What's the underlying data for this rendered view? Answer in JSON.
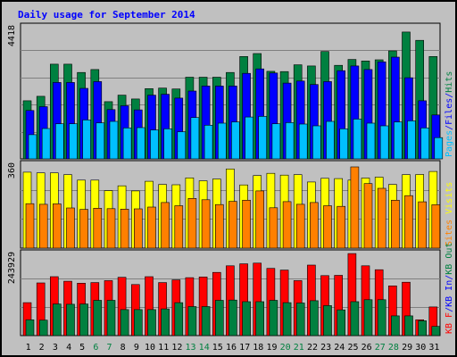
{
  "chart_data": {
    "title": "Daily usage for September 2014",
    "days": [
      "1",
      "2",
      "3",
      "4",
      "5",
      "6",
      "7",
      "8",
      "9",
      "10",
      "11",
      "12",
      "13",
      "14",
      "15",
      "16",
      "17",
      "18",
      "19",
      "20",
      "21",
      "22",
      "23",
      "24",
      "25",
      "26",
      "27",
      "28",
      "29",
      "30",
      "31"
    ],
    "weekend_days": [
      "6",
      "7",
      "13",
      "14",
      "20",
      "21",
      "27",
      "28"
    ],
    "panels": [
      {
        "id": "hits-files-pages",
        "type": "bar",
        "max_label": "4418",
        "max_value": 4418,
        "legend": [
          {
            "text": "Pages",
            "color": "#00c0ff"
          },
          {
            "text": "/",
            "color": "#0000ff"
          },
          {
            "text": "Files",
            "color": "#0000ff"
          },
          {
            "text": "/",
            "color": "#0000ff"
          },
          {
            "text": "Hits",
            "color": "#008040"
          }
        ],
        "series": [
          {
            "name": "Hits",
            "color": "#008040",
            "values": [
              1970,
              2120,
              3210,
              3210,
              2930,
              3030,
              1940,
              2160,
              2030,
              2380,
              2400,
              2370,
              2770,
              2770,
              2770,
              2930,
              3470,
              3570,
              2970,
              2960,
              3190,
              3150,
              3640,
              3170,
              3370,
              3320,
              3360,
              3660,
              4300,
              4020,
              3470
            ]
          },
          {
            "name": "Files",
            "color": "#0000ff",
            "values": [
              1640,
              1770,
              2590,
              2590,
              2390,
              2620,
              1670,
              1800,
              1660,
              2160,
              2190,
              2060,
              2300,
              2470,
              2470,
              2470,
              2900,
              3050,
              2910,
              2570,
              2640,
              2520,
              2620,
              2990,
              3150,
              3030,
              3290,
              3450,
              2750,
              1970,
              1490
            ]
          },
          {
            "name": "Pages",
            "color": "#00c0ff",
            "values": [
              820,
              1030,
              1190,
              1190,
              1320,
              1220,
              1270,
              1050,
              1060,
              980,
              1020,
              920,
              1400,
              1140,
              1210,
              1250,
              1420,
              1440,
              1190,
              1230,
              1180,
              1120,
              1270,
              1020,
              1350,
              1210,
              1120,
              1250,
              1290,
              1050,
              720
            ]
          }
        ]
      },
      {
        "id": "visits-sites",
        "type": "bar",
        "max_label": "360",
        "max_value": 360,
        "legend": [
          {
            "text": "Sites",
            "color": "#ff8000"
          },
          {
            "text": "/",
            "color": "#c0c0c0"
          },
          {
            "text": "Visits",
            "color": "#ffff00"
          }
        ],
        "series": [
          {
            "name": "Visits",
            "color": "#ffff00",
            "values": [
              333,
              330,
              330,
              322,
              298,
              298,
              252,
              273,
              251,
              293,
              279,
              278,
              308,
              295,
              303,
              347,
              277,
              318,
              328,
              320,
              322,
              290,
              306,
              305,
              298,
              307,
              311,
              279,
              322,
              323,
              336
            ]
          },
          {
            "name": "Sites",
            "color": "#ff8000",
            "values": [
              195,
              192,
              194,
              176,
              170,
              175,
              173,
              171,
              172,
              180,
              200,
              186,
              218,
              212,
              191,
              205,
              210,
              251,
              177,
              204,
              192,
              200,
              186,
              183,
              356,
              283,
              262,
              210,
              230,
              203,
              190
            ]
          }
        ]
      },
      {
        "id": "kb-in-out",
        "type": "bar",
        "max_label": "243929",
        "max_value": 243929,
        "legend": [
          {
            "text": "KB F",
            "color": "#ff0000"
          },
          {
            "text": "/",
            "color": "#0000ff"
          },
          {
            "text": "KB In",
            "color": "#0000ff"
          },
          {
            "text": "/",
            "color": "#0000ff"
          },
          {
            "text": "KB Out",
            "color": "#008040"
          }
        ],
        "series": [
          {
            "name": "KB F",
            "color": "#ff0000",
            "values": [
              100000,
              160000,
              179000,
              165000,
              159000,
              161000,
              167000,
              177000,
              155000,
              179000,
              161000,
              169000,
              176000,
              178000,
              192000,
              212000,
              218000,
              220000,
              204000,
              199000,
              167000,
              214000,
              182000,
              183000,
              249000,
              212000,
              200000,
              151000,
              162000,
              48000,
              87000
            ]
          },
          {
            "name": "KB Out",
            "color": "#008040",
            "values": [
              48000,
              47000,
              96000,
              95000,
              96000,
              107000,
              107000,
              79000,
              79000,
              79000,
              81000,
              100000,
              88000,
              88000,
              107000,
              108000,
              103000,
              103000,
              107000,
              100000,
              99000,
              106000,
              91000,
              78000,
              103000,
              109000,
              109000,
              60000,
              60000,
              45000,
              28000
            ]
          }
        ]
      }
    ]
  }
}
